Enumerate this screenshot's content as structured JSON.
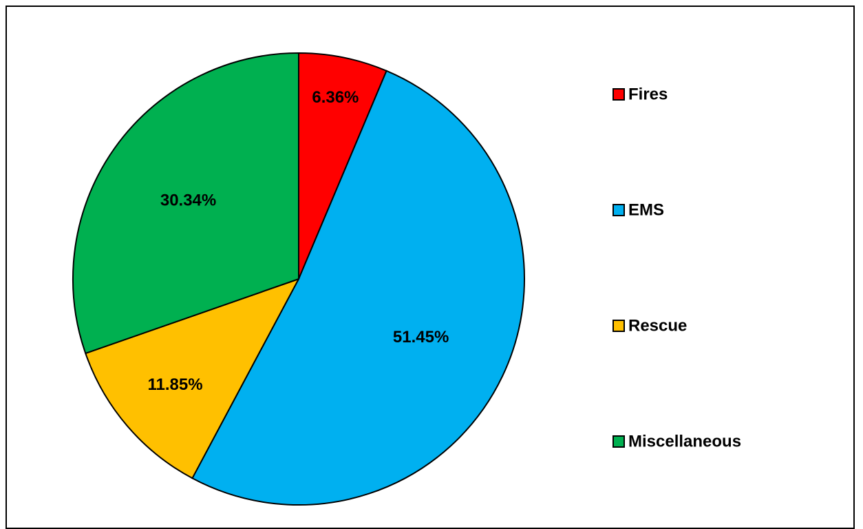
{
  "chart_data": {
    "type": "pie",
    "categories": [
      "Fires",
      "EMS",
      "Rescue",
      "Miscellaneous"
    ],
    "values": [
      6.36,
      51.45,
      11.85,
      30.34
    ],
    "value_labels": [
      "6.36%",
      "51.45%",
      "11.85%",
      "30.34%"
    ],
    "colors": [
      "#ff0000",
      "#00b0f0",
      "#ffc000",
      "#00b050"
    ],
    "start_angle": "12 o'clock",
    "direction": "clockwise",
    "legend_position": "right",
    "title": ""
  }
}
